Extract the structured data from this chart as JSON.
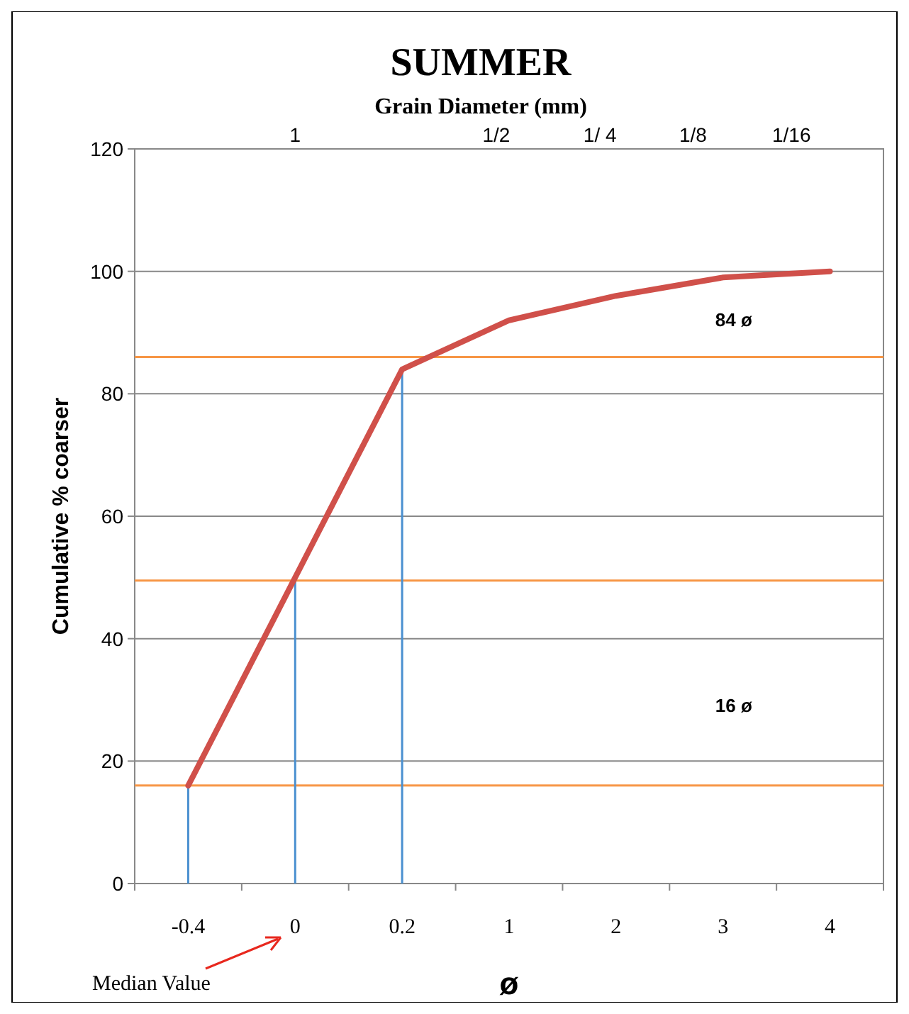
{
  "chart_data": {
    "type": "line",
    "title": "SUMMER",
    "x2label": "Grain Diameter (mm)",
    "ylabel": "Cumulative % coarser",
    "xlabel": "ø",
    "categories": [
      "-0.4",
      "0",
      "0.2",
      "1",
      "2",
      "3",
      "4"
    ],
    "series": [
      {
        "color": "#d0504a",
        "values": [
          16,
          50,
          84,
          92,
          96,
          99,
          100
        ]
      }
    ],
    "ylim": [
      0,
      120
    ],
    "yticks": [
      0,
      20,
      40,
      60,
      80,
      100,
      120
    ],
    "grid": "y",
    "marker": "none",
    "line_style": "solid",
    "ref_lines": [
      {
        "axis": "y",
        "value": 86,
        "color": "#f79646"
      },
      {
        "axis": "y",
        "value": 49.5,
        "color": "#f79646"
      },
      {
        "axis": "y",
        "value": 16,
        "color": "#f79646"
      },
      {
        "axis": "x",
        "value": "-0.4",
        "color": "#4a90d0"
      },
      {
        "axis": "x",
        "value": "0",
        "color": "#4a90d0"
      },
      {
        "axis": "x",
        "value": "0.2",
        "color": "#4a90d0"
      }
    ],
    "annotations": [
      "1",
      "1/2",
      "1/ 4",
      "1/8",
      "1/16",
      "84 ø",
      "16 ø",
      "Median Value"
    ]
  }
}
